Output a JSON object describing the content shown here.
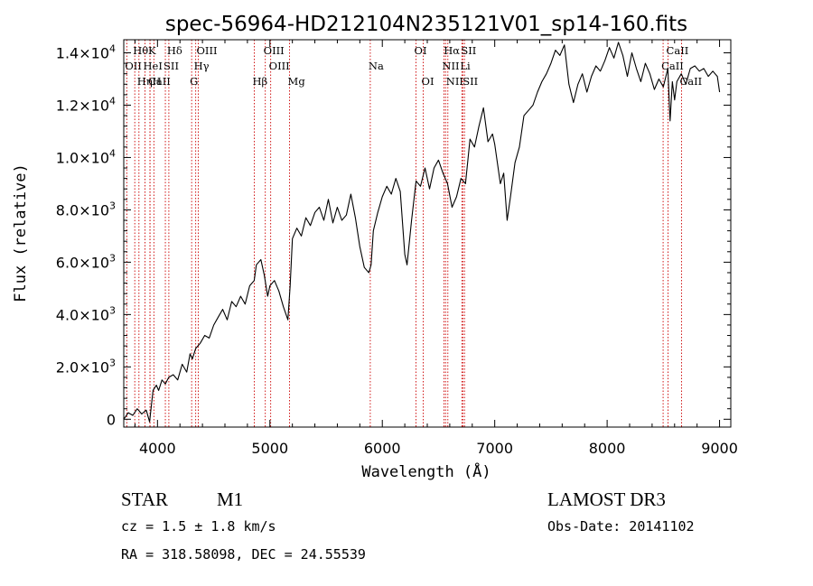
{
  "chart_data": {
    "type": "line",
    "title": "spec-56964-HD212104N235121V01_sp14-160.fits",
    "xlabel": "Wavelength (Å)",
    "ylabel": "Flux (relative)",
    "xlim": [
      3700,
      9100
    ],
    "ylim": [
      -300,
      14500
    ],
    "x_ticks": [
      {
        "value": 4000,
        "label": "4000"
      },
      {
        "value": 5000,
        "label": "5000"
      },
      {
        "value": 6000,
        "label": "6000"
      },
      {
        "value": 7000,
        "label": "7000"
      },
      {
        "value": 8000,
        "label": "8000"
      },
      {
        "value": 9000,
        "label": "9000"
      }
    ],
    "y_ticks": [
      {
        "value": 0,
        "mantissa": "0",
        "exponent": ""
      },
      {
        "value": 2000,
        "mantissa": "2.0×10",
        "exponent": "3"
      },
      {
        "value": 4000,
        "mantissa": "4.0×10",
        "exponent": "3"
      },
      {
        "value": 6000,
        "mantissa": "6.0×10",
        "exponent": "3"
      },
      {
        "value": 8000,
        "mantissa": "8.0×10",
        "exponent": "3"
      },
      {
        "value": 10000,
        "mantissa": "1.0×10",
        "exponent": "4"
      },
      {
        "value": 12000,
        "mantissa": "1.2×10",
        "exponent": "4"
      },
      {
        "value": 14000,
        "mantissa": "1.4×10",
        "exponent": "4"
      }
    ],
    "spectrum": {
      "x": [
        3700,
        3740,
        3780,
        3820,
        3860,
        3900,
        3930,
        3960,
        3990,
        4010,
        4040,
        4070,
        4100,
        4140,
        4180,
        4220,
        4260,
        4290,
        4310,
        4340,
        4380,
        4420,
        4460,
        4500,
        4540,
        4580,
        4620,
        4660,
        4700,
        4740,
        4780,
        4820,
        4860,
        4880,
        4920,
        4950,
        4980,
        5000,
        5040,
        5080,
        5120,
        5160,
        5180,
        5200,
        5240,
        5280,
        5320,
        5360,
        5400,
        5440,
        5480,
        5520,
        5560,
        5600,
        5640,
        5680,
        5720,
        5760,
        5800,
        5840,
        5880,
        5900,
        5920,
        5960,
        6000,
        6040,
        6080,
        6120,
        6160,
        6200,
        6220,
        6260,
        6300,
        6340,
        6380,
        6420,
        6460,
        6500,
        6540,
        6580,
        6620,
        6660,
        6700,
        6740,
        6780,
        6820,
        6860,
        6900,
        6940,
        6980,
        7000,
        7050,
        7080,
        7110,
        7140,
        7180,
        7220,
        7260,
        7300,
        7340,
        7380,
        7420,
        7460,
        7500,
        7540,
        7580,
        7620,
        7660,
        7700,
        7740,
        7780,
        7820,
        7860,
        7900,
        7940,
        7980,
        8020,
        8060,
        8100,
        8140,
        8180,
        8220,
        8260,
        8300,
        8340,
        8380,
        8420,
        8460,
        8500,
        8540,
        8560,
        8580,
        8600,
        8620,
        8660,
        8700,
        8740,
        8780,
        8820,
        8860,
        8900,
        8940,
        8980,
        9000
      ],
      "y": [
        0,
        250,
        150,
        400,
        200,
        350,
        -100,
        1100,
        1300,
        1100,
        1500,
        1350,
        1600,
        1700,
        1500,
        2100,
        1800,
        2500,
        2300,
        2700,
        2900,
        3200,
        3100,
        3600,
        3900,
        4200,
        3800,
        4500,
        4300,
        4700,
        4400,
        5100,
        5300,
        5900,
        6100,
        5500,
        4700,
        5100,
        5300,
        4900,
        4300,
        3800,
        5100,
        6900,
        7300,
        7000,
        7700,
        7400,
        7900,
        8100,
        7600,
        8400,
        7500,
        8100,
        7600,
        7800,
        8600,
        7700,
        6600,
        5800,
        5600,
        5900,
        7200,
        7900,
        8500,
        8900,
        8600,
        9200,
        8700,
        6300,
        5900,
        7600,
        9100,
        8900,
        9600,
        8800,
        9600,
        9900,
        9400,
        9000,
        8100,
        8500,
        9200,
        9000,
        10700,
        10400,
        11200,
        11900,
        10600,
        10900,
        10500,
        9000,
        9400,
        7600,
        8500,
        9800,
        10400,
        11600,
        11800,
        12000,
        12500,
        12900,
        13200,
        13600,
        14100,
        13900,
        14300,
        12800,
        12100,
        12800,
        13200,
        12500,
        13100,
        13500,
        13300,
        13700,
        14200,
        13800,
        14400,
        13900,
        13100,
        14000,
        13400,
        12900,
        13600,
        13200,
        12600,
        13000,
        12700,
        13400,
        11400,
        12900,
        12200,
        12900,
        13200,
        12800,
        13400,
        13500,
        13300,
        13400,
        13100,
        13300,
        13100,
        12500
      ]
    },
    "emission_lines": [
      {
        "name": "Hθ",
        "wavelength": 3798,
        "row": 0
      },
      {
        "name": "K",
        "wavelength": 3933,
        "row": 0
      },
      {
        "name": "Hδ",
        "wavelength": 4101,
        "row": 0
      },
      {
        "name": "OIII",
        "wavelength": 4363,
        "row": 0
      },
      {
        "name": "OIII",
        "wavelength": 4959,
        "row": 0
      },
      {
        "name": "OI",
        "wavelength": 6300,
        "row": 0
      },
      {
        "name": "Hα",
        "wavelength": 6563,
        "row": 0
      },
      {
        "name": "SII",
        "wavelength": 6716,
        "row": 0
      },
      {
        "name": "CaII",
        "wavelength": 8542,
        "row": 0
      },
      {
        "name": "OII",
        "wavelength": 3727,
        "row": 1
      },
      {
        "name": "HeI",
        "wavelength": 3889,
        "row": 1
      },
      {
        "name": "SII",
        "wavelength": 4070,
        "row": 1
      },
      {
        "name": "Hγ",
        "wavelength": 4340,
        "row": 1
      },
      {
        "name": "OIII",
        "wavelength": 5007,
        "row": 1
      },
      {
        "name": "Na",
        "wavelength": 5893,
        "row": 1
      },
      {
        "name": "NII",
        "wavelength": 6548,
        "row": 1
      },
      {
        "name": "Li",
        "wavelength": 6708,
        "row": 1
      },
      {
        "name": "CaII",
        "wavelength": 8498,
        "row": 1
      },
      {
        "name": "CaII",
        "wavelength": 3934,
        "row": 2
      },
      {
        "name": "Hη",
        "wavelength": 3835,
        "row": 2
      },
      {
        "name": "H",
        "wavelength": 3968,
        "row": 2
      },
      {
        "name": "G",
        "wavelength": 4304,
        "row": 2
      },
      {
        "name": "Hβ",
        "wavelength": 4861,
        "row": 2
      },
      {
        "name": "Mg",
        "wavelength": 5175,
        "row": 2
      },
      {
        "name": "OI",
        "wavelength": 6364,
        "row": 2
      },
      {
        "name": "NII",
        "wavelength": 6583,
        "row": 2
      },
      {
        "name": "SII",
        "wavelength": 6731,
        "row": 2
      },
      {
        "name": "CaII",
        "wavelength": 8662,
        "row": 2
      }
    ],
    "line_color": "#000000",
    "marker_color": "#cc0000"
  },
  "info": {
    "object_class": "STAR",
    "subclass": "M1",
    "survey": "LAMOST DR3",
    "redshift": "cz = 1.5 ± 1.8 km/s",
    "obs_date": "Obs-Date: 20141102",
    "coordinates": "RA = 318.58098, DEC =  24.55539"
  }
}
